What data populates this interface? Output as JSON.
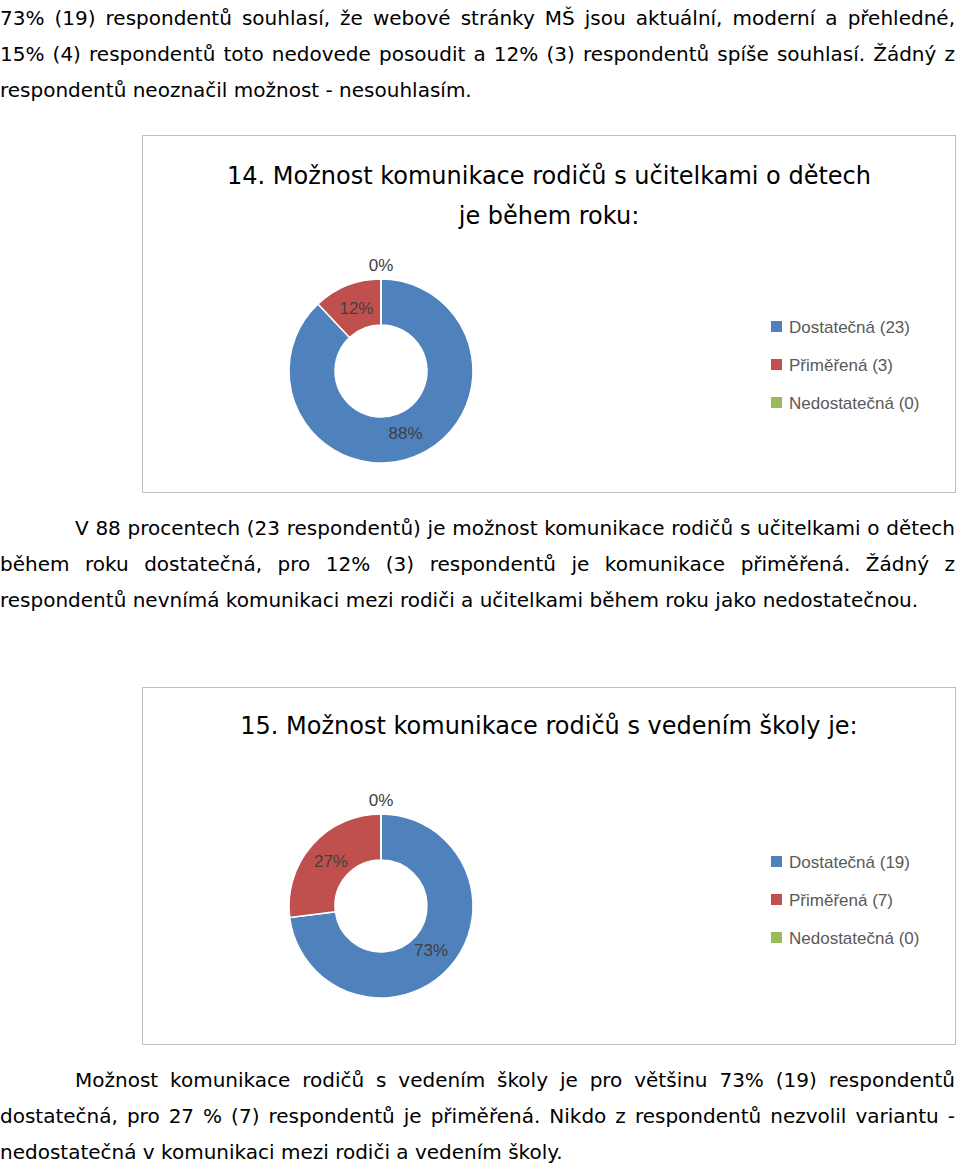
{
  "paragraphs": [
    "73% (19) respondentů souhlasí, že webové stránky MŠ jsou aktuální, moderní a přehledné, 15% (4) respondentů toto nedovede posoudit a 12% (3) respondentů spíše souhlasí. Žádný z respondentů neoznačil možnost - nesouhlasím.",
    "V 88 procentech (23 respondentů) je možnost komunikace rodičů s učitelkami o dětech během roku dostatečná, pro 12% (3) respondentů je komunikace přiměřená. Žádný z respondentů nevnímá komunikaci mezi rodiči a učitelkami během roku jako nedostatečnou.",
    "Možnost komunikace rodičů s vedením školy je pro většinu 73% (19) respondentů dostatečná, pro 27 % (7) respondentů je přiměřená. Nikdo z respondentů nezvolil variantu - nedostatečná v komunikaci mezi rodiči a vedením školy."
  ],
  "chart_data": [
    {
      "type": "donut",
      "title": "14. Možnost komunikace rodičů s učitelkami o dětech je během roku:",
      "categories": [
        "Dostatečná (23)",
        "Přiměřená (3)",
        "Nedostatečná (0)"
      ],
      "values": [
        88,
        12,
        0
      ],
      "value_labels": [
        "88%",
        "12%",
        "0%"
      ],
      "colors": [
        "#4f81bd",
        "#c0504d",
        "#9bbb59"
      ],
      "data_labels": true,
      "legend": "right"
    },
    {
      "type": "donut",
      "title": "15. Možnost komunikace rodičů s vedením školy je:",
      "categories": [
        "Dostatečná (19)",
        "Přiměřená (7)",
        "Nedostatečná (0)"
      ],
      "values": [
        73,
        27,
        0
      ],
      "value_labels": [
        "73%",
        "27%",
        "0%"
      ],
      "colors": [
        "#4f81bd",
        "#c0504d",
        "#9bbb59"
      ],
      "data_labels": true,
      "legend": "right"
    }
  ]
}
